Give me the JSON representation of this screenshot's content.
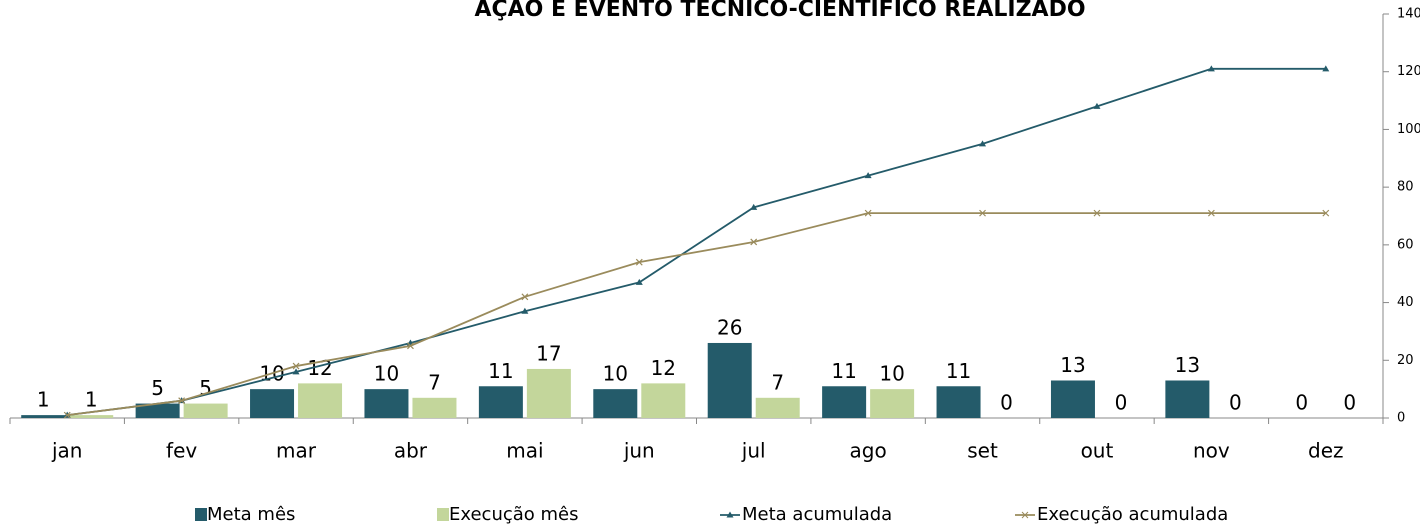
{
  "chart_data": {
    "type": "bar-line",
    "title": "AÇÃO E EVENTO TÉCNICO-CIENTÍFICO REALIZADO",
    "categories": [
      "jan",
      "fev",
      "mar",
      "abr",
      "mai",
      "jun",
      "jul",
      "ago",
      "set",
      "out",
      "nov",
      "dez"
    ],
    "series": [
      {
        "name": "Meta mês",
        "type": "bar",
        "color": "#245b6a",
        "values": [
          1,
          5,
          10,
          10,
          11,
          10,
          26,
          11,
          11,
          13,
          13,
          0
        ]
      },
      {
        "name": "Execução mês",
        "type": "bar",
        "color": "#c3d69b",
        "values": [
          1,
          5,
          12,
          7,
          17,
          12,
          7,
          10,
          0,
          0,
          0,
          0
        ]
      },
      {
        "name": "Meta acumulada",
        "type": "line",
        "marker": "triangle",
        "color": "#245b6a",
        "values": [
          1,
          6,
          16,
          26,
          37,
          47,
          73,
          84,
          95,
          108,
          121,
          121
        ]
      },
      {
        "name": "Execução acumulada",
        "type": "line",
        "marker": "x",
        "color": "#9a8b5c",
        "values": [
          1,
          6,
          18,
          25,
          42,
          54,
          61,
          71,
          71,
          71,
          71,
          71
        ]
      }
    ],
    "ylim": [
      0,
      140
    ],
    "yticks": [
      0,
      20,
      40,
      60,
      80,
      100,
      120,
      140
    ],
    "grid": false,
    "legend": "bottom"
  }
}
